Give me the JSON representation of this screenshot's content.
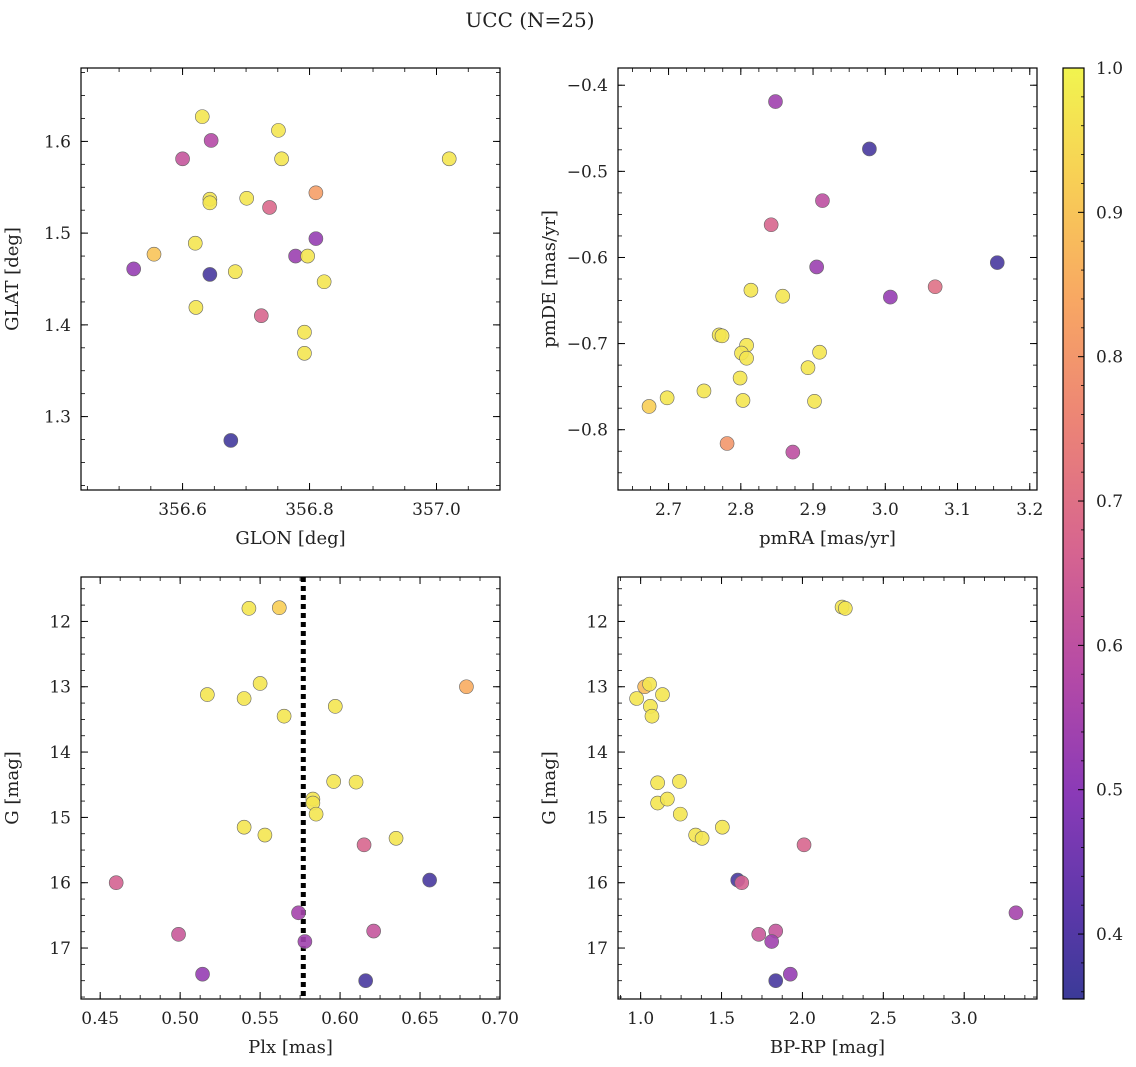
{
  "title": "UCC (N=25)",
  "colorbar": {
    "range": [
      0.355,
      1.0
    ],
    "ticks": [
      "0.4",
      "0.5",
      "0.6",
      "0.7",
      "0.8",
      "0.9",
      "1.0"
    ],
    "cmap": "plasma"
  },
  "chart_data": [
    {
      "type": "scatter",
      "xlabel": "GLON [deg]",
      "ylabel": "GLAT [deg]",
      "xlim": [
        356.44,
        357.1
      ],
      "ylim": [
        1.22,
        1.68
      ],
      "xticks": [
        "356.6",
        "356.8",
        "357.0"
      ],
      "yticks": [
        "1.3",
        "1.4",
        "1.5",
        "1.6"
      ],
      "points": [
        {
          "x": 356.631,
          "y": 1.627,
          "p": 0.97
        },
        {
          "x": 356.751,
          "y": 1.612,
          "p": 0.97
        },
        {
          "x": 356.645,
          "y": 1.601,
          "p": 0.58
        },
        {
          "x": 356.6,
          "y": 1.581,
          "p": 0.62
        },
        {
          "x": 356.756,
          "y": 1.581,
          "p": 0.97
        },
        {
          "x": 357.02,
          "y": 1.581,
          "p": 0.97
        },
        {
          "x": 356.81,
          "y": 1.544,
          "p": 0.82
        },
        {
          "x": 356.643,
          "y": 1.537,
          "p": 0.97
        },
        {
          "x": 356.643,
          "y": 1.533,
          "p": 0.97
        },
        {
          "x": 356.701,
          "y": 1.538,
          "p": 0.97
        },
        {
          "x": 356.737,
          "y": 1.528,
          "p": 0.68
        },
        {
          "x": 356.81,
          "y": 1.494,
          "p": 0.52
        },
        {
          "x": 356.62,
          "y": 1.489,
          "p": 0.97
        },
        {
          "x": 356.555,
          "y": 1.477,
          "p": 0.9
        },
        {
          "x": 356.778,
          "y": 1.475,
          "p": 0.53
        },
        {
          "x": 356.797,
          "y": 1.475,
          "p": 0.97
        },
        {
          "x": 356.523,
          "y": 1.461,
          "p": 0.52
        },
        {
          "x": 356.643,
          "y": 1.455,
          "p": 0.38
        },
        {
          "x": 356.683,
          "y": 1.458,
          "p": 0.97
        },
        {
          "x": 356.823,
          "y": 1.447,
          "p": 0.97
        },
        {
          "x": 356.621,
          "y": 1.419,
          "p": 0.97
        },
        {
          "x": 356.724,
          "y": 1.41,
          "p": 0.67
        },
        {
          "x": 356.792,
          "y": 1.392,
          "p": 0.97
        },
        {
          "x": 356.792,
          "y": 1.369,
          "p": 0.97
        },
        {
          "x": 356.676,
          "y": 1.274,
          "p": 0.37
        }
      ]
    },
    {
      "type": "scatter",
      "xlabel": "pmRA [mas/yr]",
      "ylabel": "pmDE [mas/yr]",
      "xlim": [
        2.63,
        3.21
      ],
      "ylim": [
        -0.87,
        -0.38
      ],
      "xticks": [
        "2.7",
        "2.8",
        "2.9",
        "3.0",
        "3.1",
        "3.2"
      ],
      "yticks": [
        "−0.4",
        "−0.5",
        "−0.6",
        "−0.7",
        "−0.8"
      ],
      "points": [
        {
          "x": 2.848,
          "y": -0.419,
          "p": 0.54
        },
        {
          "x": 2.978,
          "y": -0.474,
          "p": 0.38
        },
        {
          "x": 2.913,
          "y": -0.534,
          "p": 0.6
        },
        {
          "x": 2.842,
          "y": -0.562,
          "p": 0.67
        },
        {
          "x": 2.905,
          "y": -0.611,
          "p": 0.53
        },
        {
          "x": 3.155,
          "y": -0.606,
          "p": 0.38
        },
        {
          "x": 3.069,
          "y": -0.634,
          "p": 0.7
        },
        {
          "x": 3.007,
          "y": -0.646,
          "p": 0.52
        },
        {
          "x": 2.814,
          "y": -0.638,
          "p": 0.97
        },
        {
          "x": 2.858,
          "y": -0.645,
          "p": 0.97
        },
        {
          "x": 2.77,
          "y": -0.69,
          "p": 0.97
        },
        {
          "x": 2.774,
          "y": -0.691,
          "p": 0.97
        },
        {
          "x": 2.808,
          "y": -0.702,
          "p": 0.97
        },
        {
          "x": 2.801,
          "y": -0.711,
          "p": 0.97
        },
        {
          "x": 2.808,
          "y": -0.717,
          "p": 0.97
        },
        {
          "x": 2.909,
          "y": -0.71,
          "p": 0.97
        },
        {
          "x": 2.893,
          "y": -0.728,
          "p": 0.97
        },
        {
          "x": 2.799,
          "y": -0.74,
          "p": 0.97
        },
        {
          "x": 2.749,
          "y": -0.755,
          "p": 0.97
        },
        {
          "x": 2.698,
          "y": -0.763,
          "p": 0.97
        },
        {
          "x": 2.803,
          "y": -0.766,
          "p": 0.97
        },
        {
          "x": 2.902,
          "y": -0.767,
          "p": 0.97
        },
        {
          "x": 2.673,
          "y": -0.773,
          "p": 0.92
        },
        {
          "x": 2.781,
          "y": -0.816,
          "p": 0.8
        },
        {
          "x": 2.872,
          "y": -0.826,
          "p": 0.6
        }
      ]
    },
    {
      "type": "scatter",
      "xlabel": "Plx [mas]",
      "ylabel": "G [mag]",
      "xlim": [
        0.438,
        0.7
      ],
      "ylim": [
        17.78,
        11.32
      ],
      "y_inverted": true,
      "xticks": [
        "0.45",
        "0.50",
        "0.55",
        "0.60",
        "0.65",
        "0.70"
      ],
      "yticks": [
        "12",
        "13",
        "14",
        "15",
        "16",
        "17"
      ],
      "vline": 0.577,
      "points": [
        {
          "x": 0.543,
          "y": 11.8,
          "p": 0.97
        },
        {
          "x": 0.562,
          "y": 11.79,
          "p": 0.92
        },
        {
          "x": 0.517,
          "y": 13.12,
          "p": 0.97
        },
        {
          "x": 0.54,
          "y": 13.18,
          "p": 0.97
        },
        {
          "x": 0.55,
          "y": 12.95,
          "p": 0.97
        },
        {
          "x": 0.679,
          "y": 13.0,
          "p": 0.85
        },
        {
          "x": 0.565,
          "y": 13.45,
          "p": 0.97
        },
        {
          "x": 0.597,
          "y": 13.3,
          "p": 0.97
        },
        {
          "x": 0.596,
          "y": 14.45,
          "p": 0.97
        },
        {
          "x": 0.61,
          "y": 14.46,
          "p": 0.97
        },
        {
          "x": 0.583,
          "y": 14.72,
          "p": 0.97
        },
        {
          "x": 0.583,
          "y": 14.78,
          "p": 0.97
        },
        {
          "x": 0.585,
          "y": 14.95,
          "p": 0.97
        },
        {
          "x": 0.54,
          "y": 15.15,
          "p": 0.97
        },
        {
          "x": 0.553,
          "y": 15.27,
          "p": 0.97
        },
        {
          "x": 0.635,
          "y": 15.32,
          "p": 0.97
        },
        {
          "x": 0.615,
          "y": 15.42,
          "p": 0.67
        },
        {
          "x": 0.46,
          "y": 16.0,
          "p": 0.66
        },
        {
          "x": 0.656,
          "y": 15.96,
          "p": 0.38
        },
        {
          "x": 0.574,
          "y": 16.46,
          "p": 0.55
        },
        {
          "x": 0.621,
          "y": 16.74,
          "p": 0.62
        },
        {
          "x": 0.499,
          "y": 16.79,
          "p": 0.63
        },
        {
          "x": 0.578,
          "y": 16.9,
          "p": 0.54
        },
        {
          "x": 0.514,
          "y": 17.4,
          "p": 0.52
        },
        {
          "x": 0.616,
          "y": 17.5,
          "p": 0.38
        }
      ]
    },
    {
      "type": "scatter",
      "xlabel": "BP-RP [mag]",
      "ylabel": "G [mag]",
      "xlim": [
        0.86,
        3.45
      ],
      "ylim": [
        17.78,
        11.32
      ],
      "y_inverted": true,
      "xticks": [
        "1.0",
        "1.5",
        "2.0",
        "2.5",
        "3.0"
      ],
      "yticks": [
        "12",
        "13",
        "14",
        "15",
        "16",
        "17"
      ],
      "points": [
        {
          "x": 2.245,
          "y": 11.78,
          "p": 0.97
        },
        {
          "x": 2.265,
          "y": 11.8,
          "p": 0.97
        },
        {
          "x": 1.025,
          "y": 13.0,
          "p": 0.88
        },
        {
          "x": 1.055,
          "y": 12.96,
          "p": 0.97
        },
        {
          "x": 0.975,
          "y": 13.18,
          "p": 0.97
        },
        {
          "x": 1.135,
          "y": 13.12,
          "p": 0.97
        },
        {
          "x": 1.06,
          "y": 13.3,
          "p": 0.97
        },
        {
          "x": 1.07,
          "y": 13.45,
          "p": 0.97
        },
        {
          "x": 1.105,
          "y": 14.47,
          "p": 0.97
        },
        {
          "x": 1.24,
          "y": 14.45,
          "p": 0.97
        },
        {
          "x": 1.105,
          "y": 14.78,
          "p": 0.97
        },
        {
          "x": 1.165,
          "y": 14.72,
          "p": 0.97
        },
        {
          "x": 1.245,
          "y": 14.95,
          "p": 0.97
        },
        {
          "x": 1.505,
          "y": 15.15,
          "p": 0.97
        },
        {
          "x": 1.34,
          "y": 15.27,
          "p": 0.97
        },
        {
          "x": 1.38,
          "y": 15.32,
          "p": 0.97
        },
        {
          "x": 2.01,
          "y": 15.42,
          "p": 0.67
        },
        {
          "x": 1.6,
          "y": 15.96,
          "p": 0.38
        },
        {
          "x": 1.625,
          "y": 16.0,
          "p": 0.66
        },
        {
          "x": 3.32,
          "y": 16.46,
          "p": 0.55
        },
        {
          "x": 1.835,
          "y": 16.74,
          "p": 0.62
        },
        {
          "x": 1.73,
          "y": 16.79,
          "p": 0.63
        },
        {
          "x": 1.81,
          "y": 16.9,
          "p": 0.54
        },
        {
          "x": 1.925,
          "y": 17.4,
          "p": 0.52
        },
        {
          "x": 1.835,
          "y": 17.5,
          "p": 0.38
        }
      ]
    }
  ]
}
